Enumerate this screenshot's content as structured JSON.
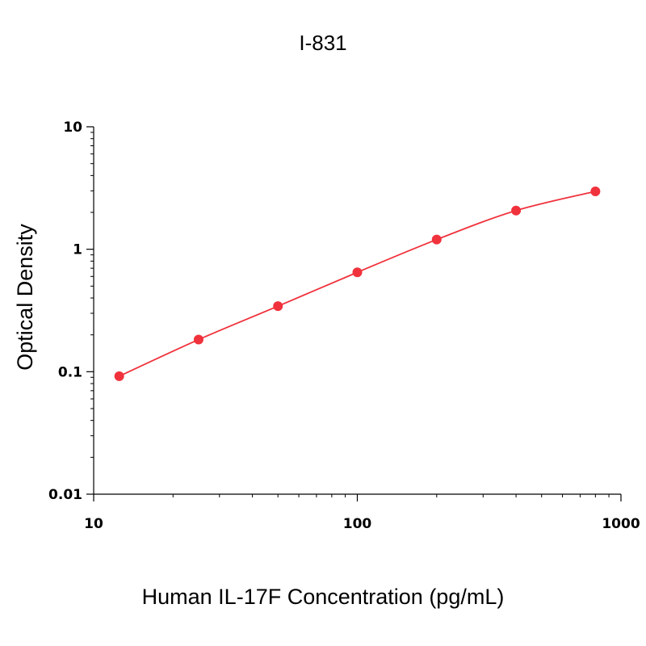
{
  "chart_data": {
    "type": "scatter",
    "title": "I-831",
    "xlabel": "Human IL-17F Concentration (pg/mL)",
    "ylabel": "Optical Density",
    "xscale": "log",
    "yscale": "log",
    "xlim": [
      10,
      1000
    ],
    "ylim": [
      0.01,
      10
    ],
    "x_ticks": [
      10,
      100,
      1000
    ],
    "x_tick_labels": [
      "10",
      "100",
      "1000"
    ],
    "y_ticks": [
      0.01,
      0.1,
      1,
      10
    ],
    "y_tick_labels": [
      "0.01",
      "0.1",
      "1",
      "10"
    ],
    "grid": false,
    "series": [
      {
        "x": [
          12.5,
          25,
          50,
          100,
          200,
          400,
          800
        ],
        "y": [
          0.092,
          0.183,
          0.343,
          0.648,
          1.2,
          2.07,
          2.97
        ],
        "color": "#f0323c",
        "fit_curve": true
      }
    ]
  }
}
